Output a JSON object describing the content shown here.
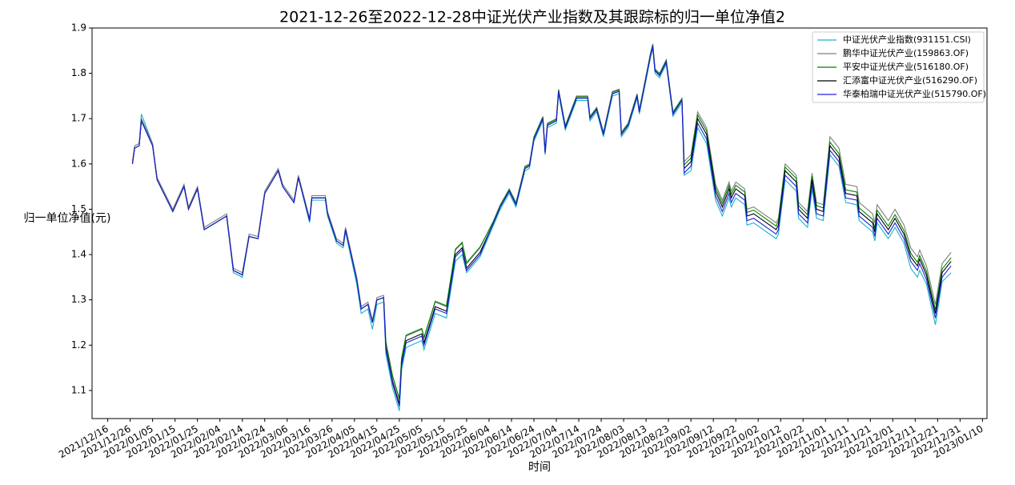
{
  "chart_data": {
    "type": "line",
    "title": "2021-12-26至2022-12-28中证光伏产业指数及其跟踪标的归一单位净值2",
    "x_label": "时间",
    "y_label": "归一单位净值(元)",
    "legend": "upper right",
    "grid": false,
    "xlim": [
      "2021-12-09",
      "2023-01-12"
    ],
    "xticks": [
      "2021/12/16",
      "2021/12/26",
      "2022/01/05",
      "2022/01/15",
      "2022/01/25",
      "2022/02/04",
      "2022/02/14",
      "2022/02/24",
      "2022/03/06",
      "2022/03/16",
      "2022/03/26",
      "2022/04/05",
      "2022/04/15",
      "2022/04/25",
      "2022/05/05",
      "2022/05/15",
      "2022/05/25",
      "2022/06/04",
      "2022/06/14",
      "2022/06/24",
      "2022/07/04",
      "2022/07/14",
      "2022/07/24",
      "2022/08/03",
      "2022/08/13",
      "2022/08/23",
      "2022/09/02",
      "2022/09/12",
      "2022/09/22",
      "2022/10/02",
      "2022/10/12",
      "2022/10/22",
      "2022/11/01",
      "2022/11/11",
      "2022/11/21",
      "2022/12/01",
      "2022/12/11",
      "2022/12/21",
      "2022/12/31",
      "2023/01/10"
    ],
    "ylim": [
      1.038,
      1.9
    ],
    "yticks": [
      1.1,
      1.2,
      1.3,
      1.4,
      1.5,
      1.6,
      1.7,
      1.8,
      1.9
    ],
    "x": [
      "2021-12-27",
      "2021-12-28",
      "2021-12-30",
      "2021-12-31",
      "2022-01-05",
      "2022-01-07",
      "2022-01-10",
      "2022-01-14",
      "2022-01-19",
      "2022-01-21",
      "2022-01-25",
      "2022-01-28",
      "2022-02-07",
      "2022-02-10",
      "2022-02-14",
      "2022-02-17",
      "2022-02-21",
      "2022-02-24",
      "2022-03-02",
      "2022-03-04",
      "2022-03-09",
      "2022-03-11",
      "2022-03-16",
      "2022-03-17",
      "2022-03-23",
      "2022-03-24",
      "2022-03-28",
      "2022-03-31",
      "2022-04-01",
      "2022-04-06",
      "2022-04-08",
      "2022-04-11",
      "2022-04-13",
      "2022-04-15",
      "2022-04-18",
      "2022-04-19",
      "2022-04-22",
      "2022-04-25",
      "2022-04-26",
      "2022-04-28",
      "2022-05-05",
      "2022-05-06",
      "2022-05-11",
      "2022-05-16",
      "2022-05-20",
      "2022-05-23",
      "2022-05-25",
      "2022-05-31",
      "2022-06-06",
      "2022-06-09",
      "2022-06-13",
      "2022-06-16",
      "2022-06-20",
      "2022-06-22",
      "2022-06-24",
      "2022-06-28",
      "2022-06-29",
      "2022-06-30",
      "2022-07-04",
      "2022-07-05",
      "2022-07-08",
      "2022-07-13",
      "2022-07-18",
      "2022-07-19",
      "2022-07-22",
      "2022-07-25",
      "2022-07-29",
      "2022-08-01",
      "2022-08-02",
      "2022-08-05",
      "2022-08-09",
      "2022-08-10",
      "2022-08-15",
      "2022-08-16",
      "2022-08-17",
      "2022-08-19",
      "2022-08-22",
      "2022-08-25",
      "2022-08-29",
      "2022-08-30",
      "2022-09-02",
      "2022-09-05",
      "2022-09-09",
      "2022-09-13",
      "2022-09-16",
      "2022-09-19",
      "2022-09-20",
      "2022-09-22",
      "2022-09-26",
      "2022-09-27",
      "2022-09-30",
      "2022-10-10",
      "2022-10-11",
      "2022-10-14",
      "2022-10-19",
      "2022-10-20",
      "2022-10-24",
      "2022-10-26",
      "2022-10-28",
      "2022-10-31",
      "2022-11-03",
      "2022-11-07",
      "2022-11-10",
      "2022-11-15",
      "2022-11-16",
      "2022-11-22",
      "2022-11-23",
      "2022-11-24",
      "2022-11-29",
      "2022-12-02",
      "2022-12-06",
      "2022-12-09",
      "2022-12-12",
      "2022-12-13",
      "2022-12-16",
      "2022-12-20",
      "2022-12-23",
      "2022-12-27"
    ],
    "series": [
      {
        "name": "中证光伏产业指数(931151.CSI)",
        "color": "#17b3c4",
        "values": [
          1.6,
          1.64,
          1.645,
          1.71,
          1.645,
          1.565,
          1.535,
          1.495,
          1.55,
          1.5,
          1.545,
          1.455,
          1.485,
          1.36,
          1.35,
          1.44,
          1.435,
          1.535,
          1.585,
          1.55,
          1.515,
          1.57,
          1.47,
          1.52,
          1.52,
          1.485,
          1.425,
          1.415,
          1.45,
          1.335,
          1.27,
          1.28,
          1.235,
          1.29,
          1.295,
          1.18,
          1.105,
          1.055,
          1.145,
          1.195,
          1.21,
          1.19,
          1.27,
          1.26,
          1.385,
          1.4,
          1.36,
          1.395,
          1.465,
          1.5,
          1.535,
          1.505,
          1.585,
          1.59,
          1.65,
          1.695,
          1.62,
          1.68,
          1.69,
          1.755,
          1.675,
          1.74,
          1.74,
          1.695,
          1.715,
          1.66,
          1.75,
          1.755,
          1.66,
          1.68,
          1.745,
          1.71,
          1.835,
          1.855,
          1.8,
          1.79,
          1.82,
          1.705,
          1.735,
          1.575,
          1.585,
          1.68,
          1.645,
          1.52,
          1.485,
          1.525,
          1.505,
          1.525,
          1.51,
          1.465,
          1.47,
          1.435,
          1.445,
          1.565,
          1.54,
          1.48,
          1.46,
          1.545,
          1.48,
          1.475,
          1.62,
          1.595,
          1.515,
          1.51,
          1.475,
          1.45,
          1.43,
          1.47,
          1.435,
          1.46,
          1.425,
          1.37,
          1.35,
          1.365,
          1.335,
          1.245,
          1.34,
          1.36
        ]
      },
      {
        "name": "鹏华中证光伏产业(159863.OF)",
        "color": "#808080",
        "values": [
          1.605,
          1.64,
          1.645,
          1.7,
          1.645,
          1.57,
          1.54,
          1.5,
          1.555,
          1.505,
          1.55,
          1.46,
          1.49,
          1.37,
          1.36,
          1.445,
          1.44,
          1.54,
          1.59,
          1.555,
          1.52,
          1.575,
          1.48,
          1.53,
          1.53,
          1.495,
          1.435,
          1.425,
          1.46,
          1.35,
          1.285,
          1.295,
          1.255,
          1.305,
          1.31,
          1.205,
          1.13,
          1.08,
          1.17,
          1.22,
          1.235,
          1.215,
          1.295,
          1.285,
          1.41,
          1.425,
          1.38,
          1.415,
          1.475,
          1.51,
          1.545,
          1.515,
          1.595,
          1.6,
          1.66,
          1.705,
          1.63,
          1.69,
          1.7,
          1.765,
          1.685,
          1.75,
          1.75,
          1.705,
          1.725,
          1.67,
          1.76,
          1.765,
          1.67,
          1.69,
          1.755,
          1.72,
          1.845,
          1.865,
          1.81,
          1.8,
          1.83,
          1.715,
          1.745,
          1.605,
          1.62,
          1.715,
          1.68,
          1.555,
          1.52,
          1.56,
          1.54,
          1.56,
          1.545,
          1.5,
          1.505,
          1.47,
          1.48,
          1.6,
          1.575,
          1.515,
          1.495,
          1.58,
          1.515,
          1.51,
          1.66,
          1.635,
          1.555,
          1.55,
          1.515,
          1.49,
          1.47,
          1.51,
          1.475,
          1.5,
          1.465,
          1.415,
          1.395,
          1.41,
          1.375,
          1.29,
          1.38,
          1.405
        ]
      },
      {
        "name": "平安中证光伏产业(516180.OF)",
        "color": "#008000",
        "values": [
          1.6,
          1.635,
          1.64,
          1.695,
          1.64,
          1.565,
          1.535,
          1.495,
          1.55,
          1.5,
          1.545,
          1.455,
          1.485,
          1.365,
          1.355,
          1.44,
          1.435,
          1.535,
          1.585,
          1.55,
          1.515,
          1.57,
          1.475,
          1.525,
          1.525,
          1.49,
          1.43,
          1.42,
          1.455,
          1.345,
          1.28,
          1.29,
          1.25,
          1.3,
          1.305,
          1.207,
          1.132,
          1.082,
          1.172,
          1.222,
          1.237,
          1.217,
          1.297,
          1.287,
          1.412,
          1.427,
          1.382,
          1.417,
          1.473,
          1.508,
          1.543,
          1.513,
          1.593,
          1.598,
          1.658,
          1.703,
          1.628,
          1.688,
          1.698,
          1.763,
          1.683,
          1.748,
          1.748,
          1.703,
          1.723,
          1.668,
          1.758,
          1.763,
          1.668,
          1.688,
          1.753,
          1.718,
          1.843,
          1.863,
          1.808,
          1.798,
          1.828,
          1.713,
          1.743,
          1.598,
          1.613,
          1.708,
          1.673,
          1.548,
          1.513,
          1.553,
          1.533,
          1.553,
          1.538,
          1.493,
          1.498,
          1.463,
          1.473,
          1.593,
          1.568,
          1.508,
          1.488,
          1.573,
          1.508,
          1.503,
          1.648,
          1.623,
          1.543,
          1.538,
          1.503,
          1.478,
          1.458,
          1.498,
          1.463,
          1.488,
          1.453,
          1.403,
          1.383,
          1.398,
          1.363,
          1.278,
          1.368,
          1.393
        ]
      },
      {
        "name": "汇添富中证光伏产业(516290.OF)",
        "color": "#000000",
        "values": [
          1.6,
          1.635,
          1.64,
          1.695,
          1.64,
          1.565,
          1.535,
          1.495,
          1.55,
          1.5,
          1.545,
          1.455,
          1.485,
          1.365,
          1.355,
          1.44,
          1.435,
          1.535,
          1.585,
          1.55,
          1.515,
          1.57,
          1.475,
          1.525,
          1.525,
          1.49,
          1.43,
          1.42,
          1.455,
          1.345,
          1.28,
          1.29,
          1.25,
          1.3,
          1.305,
          1.195,
          1.12,
          1.07,
          1.16,
          1.21,
          1.225,
          1.205,
          1.285,
          1.275,
          1.4,
          1.415,
          1.37,
          1.405,
          1.47,
          1.505,
          1.54,
          1.51,
          1.59,
          1.595,
          1.655,
          1.7,
          1.625,
          1.685,
          1.695,
          1.76,
          1.68,
          1.745,
          1.745,
          1.7,
          1.72,
          1.665,
          1.755,
          1.76,
          1.665,
          1.685,
          1.75,
          1.715,
          1.84,
          1.86,
          1.805,
          1.795,
          1.825,
          1.71,
          1.74,
          1.59,
          1.605,
          1.7,
          1.665,
          1.54,
          1.505,
          1.545,
          1.525,
          1.545,
          1.53,
          1.485,
          1.49,
          1.455,
          1.465,
          1.585,
          1.56,
          1.5,
          1.48,
          1.565,
          1.5,
          1.495,
          1.64,
          1.615,
          1.535,
          1.53,
          1.495,
          1.47,
          1.45,
          1.49,
          1.455,
          1.48,
          1.445,
          1.395,
          1.375,
          1.39,
          1.355,
          1.27,
          1.36,
          1.385
        ]
      },
      {
        "name": "华泰柏瑞中证光伏产业(515790.OF)",
        "color": "#2020e0",
        "values": [
          1.6,
          1.635,
          1.64,
          1.695,
          1.64,
          1.565,
          1.535,
          1.495,
          1.55,
          1.5,
          1.545,
          1.455,
          1.485,
          1.365,
          1.355,
          1.44,
          1.435,
          1.535,
          1.585,
          1.55,
          1.515,
          1.57,
          1.475,
          1.525,
          1.525,
          1.49,
          1.43,
          1.42,
          1.455,
          1.345,
          1.28,
          1.29,
          1.25,
          1.3,
          1.305,
          1.19,
          1.115,
          1.065,
          1.155,
          1.205,
          1.22,
          1.2,
          1.28,
          1.27,
          1.395,
          1.41,
          1.365,
          1.4,
          1.47,
          1.505,
          1.54,
          1.51,
          1.59,
          1.595,
          1.655,
          1.7,
          1.625,
          1.685,
          1.695,
          1.76,
          1.68,
          1.745,
          1.745,
          1.7,
          1.72,
          1.665,
          1.755,
          1.76,
          1.665,
          1.685,
          1.75,
          1.715,
          1.84,
          1.86,
          1.805,
          1.795,
          1.825,
          1.71,
          1.74,
          1.58,
          1.595,
          1.69,
          1.655,
          1.53,
          1.495,
          1.535,
          1.515,
          1.535,
          1.52,
          1.475,
          1.48,
          1.445,
          1.455,
          1.575,
          1.55,
          1.49,
          1.47,
          1.555,
          1.49,
          1.485,
          1.63,
          1.605,
          1.525,
          1.52,
          1.485,
          1.46,
          1.44,
          1.48,
          1.445,
          1.47,
          1.435,
          1.385,
          1.365,
          1.38,
          1.345,
          1.26,
          1.35,
          1.375
        ]
      }
    ]
  }
}
